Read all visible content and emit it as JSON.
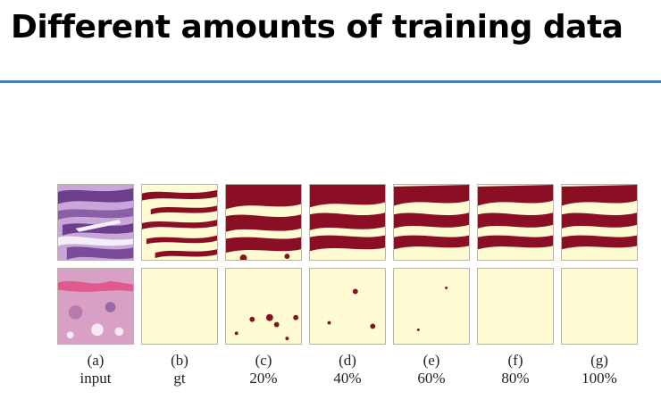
{
  "slide": {
    "title": "Different amounts of training data"
  },
  "figure": {
    "columns": [
      {
        "label": "(a)",
        "sublabel": "input"
      },
      {
        "label": "(b)",
        "sublabel": "gt"
      },
      {
        "label": "(c)",
        "sublabel": "20%"
      },
      {
        "label": "(d)",
        "sublabel": "40%"
      },
      {
        "label": "(e)",
        "sublabel": "60%"
      },
      {
        "label": "(f)",
        "sublabel": "80%"
      },
      {
        "label": "(g)",
        "sublabel": "100%"
      }
    ]
  },
  "colors": {
    "title_rule": "#4a7ebb",
    "background_mask": "#fffbd2",
    "foreground_mask": "#8b0f24",
    "histology_purple": "#8a5fa8",
    "histology_pink": "#d8a0c4"
  }
}
